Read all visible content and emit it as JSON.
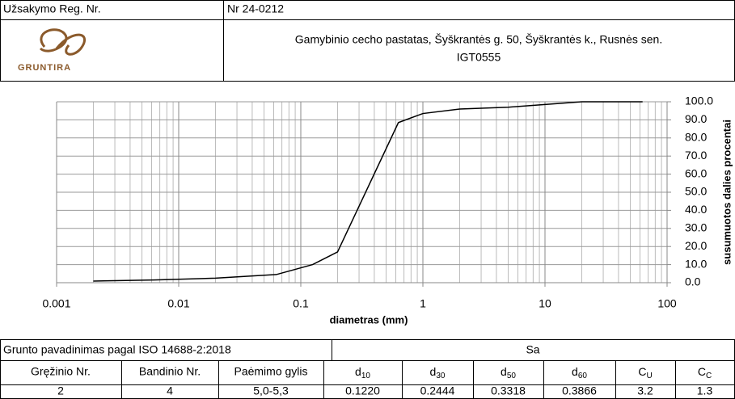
{
  "header": {
    "order_label": "Užsakymo Reg. Nr.",
    "order_number": "Nr 24-0212",
    "logo_text": "GRUNTIRA",
    "title_line1": "Gamybinio cecho pastatas, Šyškrantės g. 50, Šyškrantės k., Rusnės sen.",
    "title_line2": "IGT0555"
  },
  "chart_data": {
    "type": "line",
    "x_label": "diametras (mm)",
    "y_label": "susumuotos dalies procentai",
    "x": [
      0.002,
      0.0063,
      0.02,
      0.063,
      0.125,
      0.2,
      0.63,
      1,
      2,
      5,
      10,
      20,
      63
    ],
    "series": [
      {
        "name": "Sa",
        "color": "#000000",
        "values": [
          0.9,
          1.5,
          2.5,
          4.5,
          10,
          17,
          88.5,
          93.5,
          96,
          97,
          98.5,
          100,
          100
        ]
      }
    ],
    "xlim": [
      0.001,
      100
    ],
    "xticks": [
      0.001,
      0.01,
      0.1,
      1,
      10,
      100
    ],
    "log_x": true,
    "minor_grid": true,
    "ylim": [
      0,
      100
    ],
    "yticks": [
      {
        "value": 0,
        "label": "0.0"
      },
      {
        "value": 10,
        "label": "10.0"
      },
      {
        "value": 20,
        "label": "20.0"
      },
      {
        "value": 30,
        "label": "30.0"
      },
      {
        "value": 40,
        "label": "40.0"
      },
      {
        "value": 50,
        "label": "50.0"
      },
      {
        "value": 60,
        "label": "60.0"
      },
      {
        "value": 70,
        "label": "70.0"
      },
      {
        "value": 80,
        "label": "80.0"
      },
      {
        "value": 90,
        "label": "90.0"
      },
      {
        "value": 100,
        "label": "100.0"
      }
    ],
    "grid": true,
    "y_axis_side": "right"
  },
  "table": {
    "title": "Grunto pavadinimas pagal ISO 14688-2:2018",
    "soil": "Sa",
    "columns": [
      "Gręžinio Nr.",
      "Bandinio Nr.",
      "Paėmimo gylis",
      {
        "base": "d",
        "sub": "10"
      },
      {
        "base": "d",
        "sub": "30"
      },
      {
        "base": "d",
        "sub": "50"
      },
      {
        "base": "d",
        "sub": "60"
      },
      {
        "base": "C",
        "sub": "U"
      },
      {
        "base": "C",
        "sub": "C"
      }
    ],
    "rows": [
      [
        "2",
        "4",
        "5,0-5,3",
        "0.1220",
        "0.2444",
        "0.3318",
        "0.3866",
        "3.2",
        "1.3"
      ]
    ]
  }
}
